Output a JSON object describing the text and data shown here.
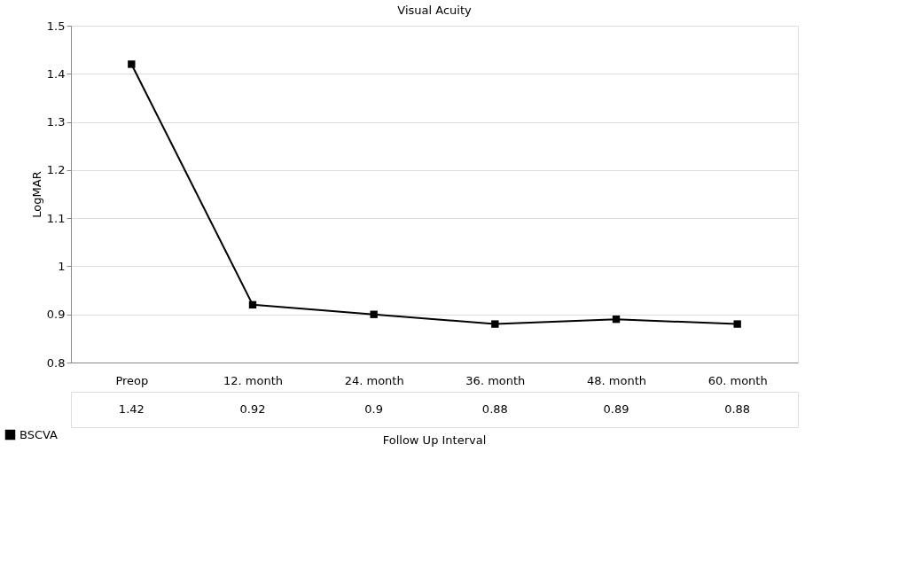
{
  "chart_data": {
    "type": "line",
    "title": "Visual Acuity",
    "xlabel": "Follow Up Interval",
    "ylabel": "LogMAR",
    "categories": [
      "Preop",
      "12. month",
      "24. month",
      "36. month",
      "48. month",
      "60. month"
    ],
    "series": [
      {
        "name": "BSCVA",
        "color": "#000000",
        "values": [
          1.42,
          0.92,
          0.9,
          0.88,
          0.89,
          0.88
        ]
      }
    ],
    "ylim": [
      0.8,
      1.5
    ],
    "yticks": [
      0.8,
      0.9,
      1,
      1.1,
      1.2,
      1.3,
      1.4,
      1.5
    ],
    "grid": "y",
    "legend": "bottom left",
    "marker": "square",
    "line_style": "solid",
    "data_labels": true
  }
}
